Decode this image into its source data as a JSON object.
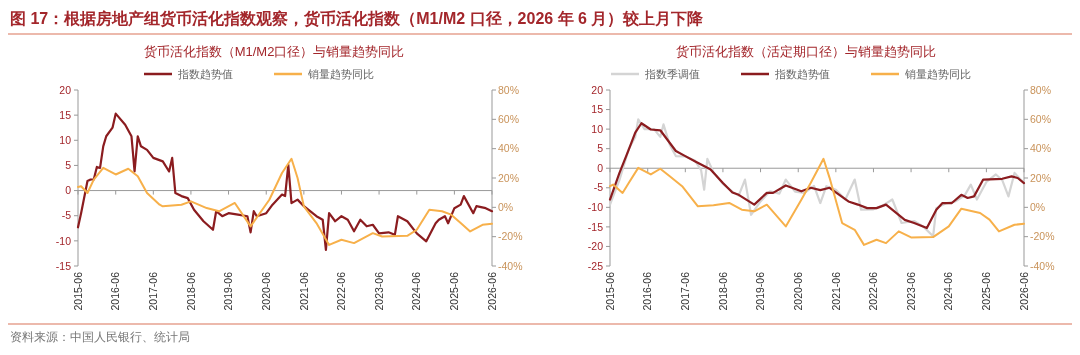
{
  "chart_data": [
    {
      "type": "line",
      "title": "货币活化指数（M1/M2口径）与销量趋势同比",
      "legend": "top",
      "annotations": [
        "图 17：根据房地产组货币活化指数观察，货币活化指数（M1/M2 口径，2026 年 6 月）较上月下降"
      ],
      "xlim": [
        "2015-06",
        "2026-06"
      ],
      "xticks": [
        "2015-06",
        "2016-06",
        "2017-06",
        "2018-06",
        "2019-06",
        "2020-06",
        "2021-06",
        "2022-06",
        "2023-06",
        "2024-06",
        "2025-06",
        "2026-06"
      ],
      "ylim": [
        -15,
        20
      ],
      "yticks": [
        -15,
        -10,
        -5,
        0,
        5,
        10,
        15,
        20
      ],
      "y2lim": [
        -40,
        80
      ],
      "y2ticks": [
        {
          "value": -40,
          "label": "-40%"
        },
        {
          "value": -20,
          "label": "-20%"
        },
        {
          "value": 0,
          "label": "0%"
        },
        {
          "value": 20,
          "label": "20%"
        },
        {
          "value": 40,
          "label": "40%"
        },
        {
          "value": 60,
          "label": "60%"
        },
        {
          "value": 80,
          "label": "80%"
        }
      ],
      "series": [
        {
          "name": "指数趋势值",
          "color": "#8b1c1f",
          "x": [
            "2015-06",
            "2015-07",
            "2015-09",
            "2015-10",
            "2015-11",
            "2015-12",
            "2016-01",
            "2016-02",
            "2016-03",
            "2016-05",
            "2016-06",
            "2016-09",
            "2016-11",
            "2016-12",
            "2017-01",
            "2017-02",
            "2017-04",
            "2017-06",
            "2017-09",
            "2017-11",
            "2017-12",
            "2018-01",
            "2018-03",
            "2018-05",
            "2018-07",
            "2018-10",
            "2019-01",
            "2019-02",
            "2019-04",
            "2019-06",
            "2019-09",
            "2019-12",
            "2020-01",
            "2020-02",
            "2020-03",
            "2020-06",
            "2020-08",
            "2020-11",
            "2020-12",
            "2021-01",
            "2021-02",
            "2021-04",
            "2021-06",
            "2021-10",
            "2021-12",
            "2022-01",
            "2022-02",
            "2022-04",
            "2022-06",
            "2022-08",
            "2022-10",
            "2022-12",
            "2023-02",
            "2023-04",
            "2023-06",
            "2023-09",
            "2023-11",
            "2023-12",
            "2024-03",
            "2024-06",
            "2024-09",
            "2024-12",
            "2025-01",
            "2025-03",
            "2025-04",
            "2025-06",
            "2025-08",
            "2025-09",
            "2025-12",
            "2026-01",
            "2026-04",
            "2026-06"
          ],
          "values": [
            -7.3,
            -4.5,
            1.9,
            2.2,
            2.2,
            4.7,
            4.5,
            8.8,
            10.8,
            12.5,
            15.3,
            13.1,
            10.8,
            3.8,
            10.8,
            8.8,
            8.1,
            6.5,
            5.8,
            3.8,
            6.5,
            -0.5,
            -1.1,
            -1.5,
            -3.8,
            -6.1,
            -7.8,
            -4.1,
            -5.1,
            -4.5,
            -4.8,
            -5.1,
            -8.3,
            -4.1,
            -5.1,
            -4.5,
            -2.8,
            -0.8,
            -1.1,
            5.1,
            -2.5,
            -1.8,
            -3.1,
            -5.1,
            -5.8,
            -11.8,
            -4.5,
            -6.1,
            -5.1,
            -5.8,
            -8.1,
            -5.8,
            -7.1,
            -6.8,
            -8.5,
            -8.3,
            -8.8,
            -5.1,
            -6.1,
            -8.5,
            -10.1,
            -6.5,
            -5.8,
            -5.1,
            -6.5,
            -3.5,
            -2.8,
            -1.1,
            -4.5,
            -3.1,
            -3.5,
            -4.1
          ]
        },
        {
          "name": "销量趋势同比",
          "color": "#f7b04a",
          "axis": "y2",
          "x": [
            "2015-06",
            "2015-07",
            "2015-09",
            "2015-11",
            "2016-02",
            "2016-06",
            "2016-10",
            "2017-01",
            "2017-04",
            "2017-08",
            "2017-09",
            "2018-03",
            "2018-06",
            "2018-11",
            "2019-03",
            "2019-08",
            "2020-01",
            "2020-07",
            "2020-11",
            "2021-02",
            "2021-04",
            "2021-06",
            "2021-10",
            "2022-02",
            "2022-06",
            "2022-10",
            "2023-04",
            "2023-07",
            "2024-03",
            "2024-06",
            "2024-10",
            "2025-02",
            "2025-05",
            "2025-08",
            "2025-11",
            "2026-03",
            "2026-06"
          ],
          "values": [
            13.9,
            14.4,
            9.8,
            18.9,
            26.9,
            22.4,
            26.3,
            21.2,
            9.8,
            1.8,
            0.7,
            1.8,
            4.1,
            -0.5,
            -2.7,
            3.0,
            -13.0,
            5.2,
            23.4,
            33.1,
            20.0,
            0.7,
            -10.7,
            -25.6,
            -22.1,
            -24.4,
            -17.6,
            -19.9,
            -19.4,
            -15.3,
            -1.6,
            -2.7,
            -5.0,
            -10.7,
            -16.4,
            -11.9,
            -11.2
          ]
        }
      ]
    },
    {
      "type": "line",
      "title": "货币活化指数（活定期口径）与销量趋势同比",
      "legend": "top",
      "annotations": [
        "资料来源：中国人民银行、统计局"
      ],
      "xlim": [
        "2015-06",
        "2026-06"
      ],
      "xticks": [
        "2015-06",
        "2016-06",
        "2017-06",
        "2018-06",
        "2019-06",
        "2020-06",
        "2021-06",
        "2022-06",
        "2023-06",
        "2024-06",
        "2025-06",
        "2026-06"
      ],
      "ylim": [
        -25,
        20
      ],
      "yticks": [
        -25,
        -20,
        -15,
        -10,
        -5,
        0,
        5,
        10,
        15,
        20
      ],
      "y2lim": [
        -40,
        80
      ],
      "y2ticks": [
        {
          "value": -40,
          "label": "-40%"
        },
        {
          "value": -20,
          "label": "-20%"
        },
        {
          "value": 0,
          "label": "0%"
        },
        {
          "value": 20,
          "label": "20%"
        },
        {
          "value": 40,
          "label": "40%"
        },
        {
          "value": 60,
          "label": "60%"
        },
        {
          "value": 80,
          "label": "80%"
        }
      ],
      "series": [
        {
          "name": "指数季调值",
          "color": "#d4d4d4",
          "x": [
            "2015-06",
            "2015-09",
            "2015-12",
            "2016-02",
            "2016-03",
            "2016-05",
            "2016-08",
            "2016-10",
            "2016-11",
            "2017-01",
            "2017-03",
            "2017-06",
            "2017-09",
            "2017-11",
            "2017-12",
            "2018-01",
            "2018-03",
            "2018-06",
            "2018-09",
            "2018-11",
            "2019-01",
            "2019-03",
            "2019-06",
            "2019-09",
            "2019-12",
            "2020-02",
            "2020-05",
            "2020-08",
            "2020-11",
            "2021-01",
            "2021-03",
            "2021-06",
            "2021-09",
            "2021-12",
            "2022-02",
            "2022-06",
            "2022-09",
            "2022-12",
            "2023-03",
            "2023-07",
            "2023-10",
            "2024-01",
            "2024-02",
            "2024-05",
            "2024-08",
            "2024-11",
            "2025-01",
            "2025-03",
            "2025-06",
            "2025-09",
            "2025-11",
            "2026-01",
            "2026-03",
            "2026-06"
          ],
          "values": [
            -9.3,
            -3.0,
            5.0,
            8.0,
            12.5,
            10.0,
            10.0,
            8.0,
            11.2,
            6.0,
            3.1,
            3.0,
            2.0,
            -0.5,
            -5.5,
            2.4,
            -1.0,
            -4.0,
            -6.0,
            -7.0,
            -2.9,
            -11.9,
            -8.5,
            -5.9,
            -6.5,
            -2.9,
            -6.0,
            -6.3,
            -4.5,
            -8.9,
            -4.6,
            -5.5,
            -8.0,
            -2.9,
            -10.6,
            -10.5,
            -9.5,
            -8.0,
            -14.0,
            -13.5,
            -15.0,
            -17.4,
            -10.2,
            -9.0,
            -8.5,
            -7.0,
            -4.2,
            -8.0,
            -3.5,
            -1.6,
            -3.0,
            -7.2,
            -1.2,
            -3.8
          ]
        },
        {
          "name": "指数趋势值",
          "color": "#8b1c1f",
          "x": [
            "2015-06",
            "2015-09",
            "2015-12",
            "2016-02",
            "2016-04",
            "2016-07",
            "2016-10",
            "2017-03",
            "2017-06",
            "2017-09",
            "2018-01",
            "2018-02",
            "2018-06",
            "2018-09",
            "2018-11",
            "2019-04",
            "2019-08",
            "2019-10",
            "2020-02",
            "2020-07",
            "2020-10",
            "2021-01",
            "2021-04",
            "2021-10",
            "2022-01",
            "2022-04",
            "2022-07",
            "2022-10",
            "2023-04",
            "2023-07",
            "2023-11",
            "2024-02",
            "2024-04",
            "2024-07",
            "2024-10",
            "2024-12",
            "2025-02",
            "2025-05",
            "2025-11",
            "2026-02",
            "2026-04",
            "2026-06"
          ],
          "values": [
            -8.0,
            -1.2,
            4.8,
            9.1,
            11.5,
            9.9,
            9.7,
            4.4,
            3.1,
            1.8,
            0.1,
            -0.3,
            -3.8,
            -6.2,
            -6.8,
            -9.3,
            -6.3,
            -6.3,
            -4.4,
            -5.9,
            -5.0,
            -5.6,
            -5.0,
            -8.5,
            -9.3,
            -10.2,
            -10.2,
            -9.3,
            -13.2,
            -14.0,
            -15.3,
            -10.6,
            -8.9,
            -8.9,
            -6.8,
            -7.6,
            -7.2,
            -2.9,
            -2.7,
            -2.1,
            -2.5,
            -3.8
          ]
        },
        {
          "name": "销量趋势同比",
          "color": "#f7b04a",
          "axis": "y2",
          "x": [
            "2015-06",
            "2015-07",
            "2015-10",
            "2015-12",
            "2016-03",
            "2016-07",
            "2016-10",
            "2017-01",
            "2017-05",
            "2017-10",
            "2018-03",
            "2018-08",
            "2018-12",
            "2019-04",
            "2019-08",
            "2020-02",
            "2020-07",
            "2020-10",
            "2021-02",
            "2021-04",
            "2021-08",
            "2021-12",
            "2022-03",
            "2022-07",
            "2022-10",
            "2023-02",
            "2023-06",
            "2024-01",
            "2024-06",
            "2024-10",
            "2025-04",
            "2025-07",
            "2025-10",
            "2026-03",
            "2026-06"
          ],
          "values": [
            14.4,
            15.5,
            9.8,
            16.7,
            26.9,
            22.4,
            26.3,
            21.2,
            14.4,
            0.7,
            1.4,
            3.0,
            -1.6,
            -2.7,
            1.8,
            -13.0,
            5.2,
            16.7,
            33.1,
            20.1,
            -10.7,
            -15.3,
            -25.6,
            -22.1,
            -24.4,
            -16.4,
            -20.5,
            -20.3,
            -13.0,
            -0.9,
            -3.9,
            -8.4,
            -16.4,
            -11.9,
            -11.2
          ]
        }
      ]
    }
  ]
}
